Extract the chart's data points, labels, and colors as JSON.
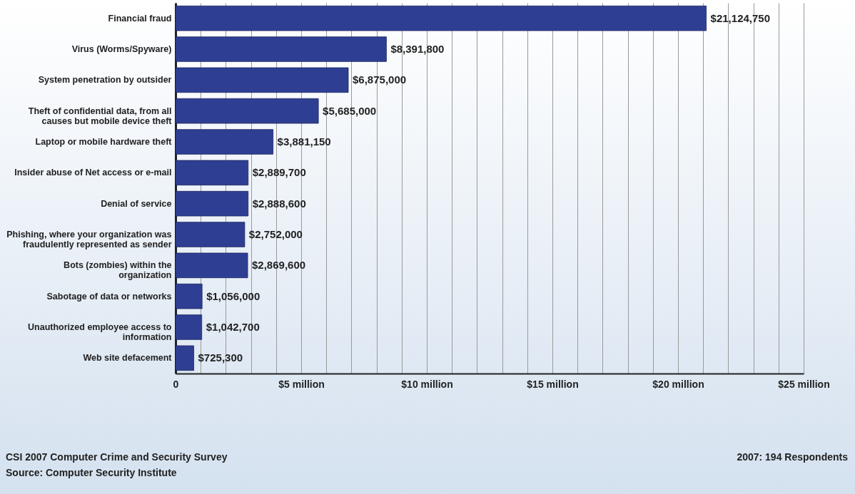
{
  "chart_data": {
    "type": "bar",
    "orientation": "horizontal",
    "color": "#2e3f93",
    "categories": [
      "Financial fraud",
      "Virus (Worms/Spyware)",
      "System penetration by outsider",
      "Theft of confidential data, from all causes but mobile device theft",
      "Laptop or mobile hardware theft",
      "Insider abuse of Net access or e-mail",
      "Denial of service",
      "Phishing, where your organization was fraudulently represented as sender",
      "Bots (zombies) within the organization",
      "Sabotage of data or networks",
      "Unauthorized employee access to information",
      "Web site defacement"
    ],
    "values": [
      21124750,
      8391800,
      6875000,
      5685000,
      3881150,
      2889700,
      2888600,
      2752000,
      2869600,
      1056000,
      1042700,
      725300
    ],
    "value_labels": [
      "$21,124,750",
      "$8,391,800",
      "$6,875,000",
      "$5,685,000",
      "$3,881,150",
      "$2,889,700",
      "$2,888,600",
      "$2,752,000",
      "$2,869,600",
      "$1,056,000",
      "$1,042,700",
      "$725,300"
    ],
    "xlim": [
      0,
      25000000
    ],
    "xticks": [
      0,
      {
        "value": 1000000,
        "label": null
      },
      {
        "value": 2000000,
        "label": null
      },
      {
        "value": 3000000,
        "label": null
      },
      {
        "value": 4000000,
        "label": null
      },
      {
        "value": 5000000,
        "label": "$5 million"
      },
      {
        "value": 6000000,
        "label": null
      },
      {
        "value": 7000000,
        "label": null
      },
      {
        "value": 8000000,
        "label": null
      },
      {
        "value": 9000000,
        "label": null
      },
      {
        "value": 10000000,
        "label": "$10 million"
      },
      {
        "value": 11000000,
        "label": null
      },
      {
        "value": 12000000,
        "label": null
      },
      {
        "value": 13000000,
        "label": null
      },
      {
        "value": 14000000,
        "label": null
      },
      {
        "value": 15000000,
        "label": "$15 million"
      },
      {
        "value": 16000000,
        "label": null
      },
      {
        "value": 17000000,
        "label": null
      },
      {
        "value": 18000000,
        "label": null
      },
      {
        "value": 19000000,
        "label": null
      },
      {
        "value": 20000000,
        "label": "$20 million"
      },
      {
        "value": 21000000,
        "label": null
      },
      {
        "value": 22000000,
        "label": null
      },
      {
        "value": 23000000,
        "label": null
      },
      {
        "value": 24000000,
        "label": null
      },
      {
        "value": 25000000,
        "label": "$25 million"
      }
    ],
    "grid": "x",
    "annotations": [
      "CSI 2007 Computer Crime and Security Survey",
      "Source: Computer Security Institute",
      "2007: 194 Respondents"
    ]
  }
}
